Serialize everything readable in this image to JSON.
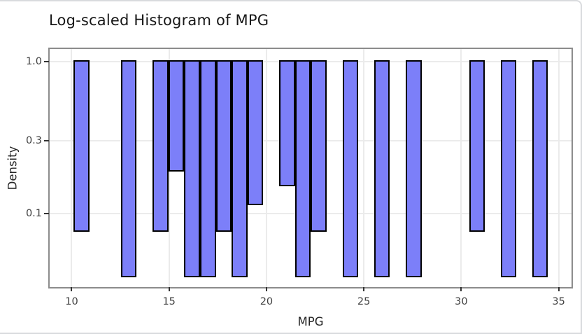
{
  "chart_data": {
    "type": "bar",
    "subtype": "histogram-log-y",
    "title": "Log-scaled Histogram of MPG",
    "xlabel": "MPG",
    "ylabel": "Density",
    "y_scale": "log10",
    "grid": true,
    "legend": "none",
    "x_tick_labels": [
      "10",
      "15",
      "20",
      "25",
      "30",
      "35"
    ],
    "x_tick_values": [
      10,
      15,
      20,
      25,
      30,
      35
    ],
    "y_tick_labels": [
      "1.0",
      "0.3",
      "0.1"
    ],
    "y_tick_values": [
      1.0,
      0.3,
      0.1
    ],
    "x_range": [
      8.87,
      35.66
    ],
    "y_range": [
      0.0328,
      1.21
    ],
    "bars_top_value": 1.0,
    "binwidth": 0.812,
    "n_observations": 32,
    "bars": [
      {
        "x0": 10.1,
        "x1": 10.91,
        "count": 2,
        "density": 0.077
      },
      {
        "x0": 12.53,
        "x1": 13.34,
        "count": 1,
        "density": 0.0385
      },
      {
        "x0": 14.16,
        "x1": 14.97,
        "count": 2,
        "density": 0.077
      },
      {
        "x0": 14.97,
        "x1": 15.78,
        "count": 5,
        "density": 0.1926
      },
      {
        "x0": 15.78,
        "x1": 16.59,
        "count": 1,
        "density": 0.0385
      },
      {
        "x0": 16.59,
        "x1": 17.4,
        "count": 1,
        "density": 0.0385
      },
      {
        "x0": 17.4,
        "x1": 18.21,
        "count": 2,
        "density": 0.077
      },
      {
        "x0": 18.21,
        "x1": 19.03,
        "count": 1,
        "density": 0.0385
      },
      {
        "x0": 19.03,
        "x1": 19.84,
        "count": 3,
        "density": 0.1155
      },
      {
        "x0": 20.65,
        "x1": 21.46,
        "count": 4,
        "density": 0.1541
      },
      {
        "x0": 21.46,
        "x1": 22.28,
        "count": 1,
        "density": 0.0385
      },
      {
        "x0": 22.28,
        "x1": 23.09,
        "count": 2,
        "density": 0.077
      },
      {
        "x0": 23.9,
        "x1": 24.71,
        "count": 1,
        "density": 0.0385
      },
      {
        "x0": 25.53,
        "x1": 26.34,
        "count": 1,
        "density": 0.0385
      },
      {
        "x0": 27.15,
        "x1": 27.96,
        "count": 1,
        "density": 0.0385
      },
      {
        "x0": 30.4,
        "x1": 31.21,
        "count": 2,
        "density": 0.077
      },
      {
        "x0": 32.02,
        "x1": 32.83,
        "count": 1,
        "density": 0.0385
      },
      {
        "x0": 33.64,
        "x1": 34.45,
        "count": 1,
        "density": 0.0385
      }
    ],
    "colors": {
      "bar_fill": "#7C7FF9",
      "bar_edge": "#000000",
      "gridline": "#ebebeb",
      "panel_border": "#8c8c8c",
      "tick_mark": "#333333",
      "tick_label": "#3f3f3f",
      "axis_label": "#262626",
      "title": "#171717",
      "frame_border": "#d9dbde",
      "background": "#ffffff"
    }
  }
}
